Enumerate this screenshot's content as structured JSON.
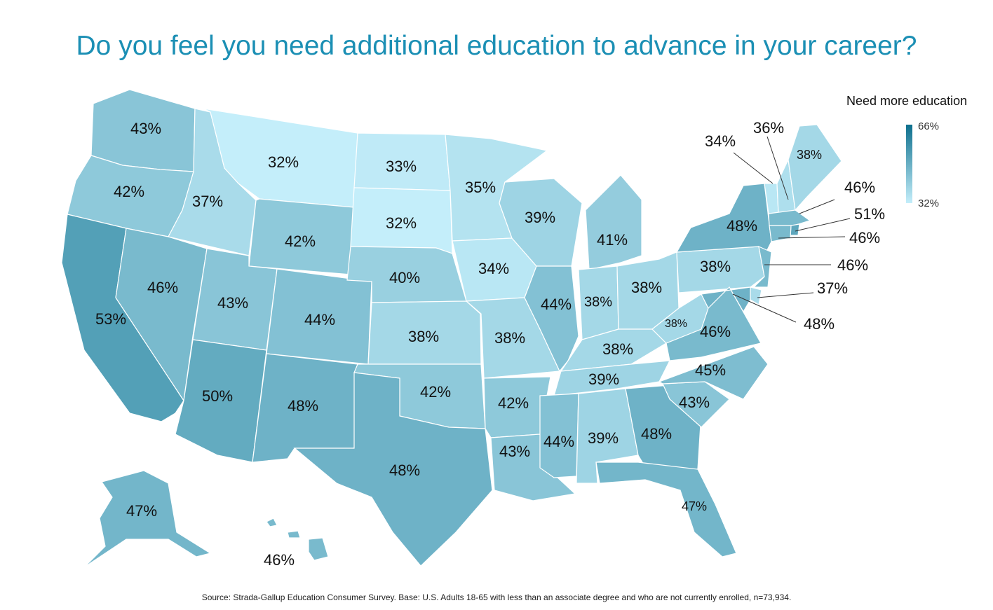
{
  "title": "Do you feel you need additional education to advance in your career?",
  "legend": {
    "title": "Need more education",
    "max": "66%",
    "min": "32%",
    "color_max": "#0d6f8d",
    "color_min": "#c4eefa"
  },
  "source": "Source: Strada-Gallup Education Consumer Survey.  Base: U.S. Adults 18-65 with less than an associate degree and who are not currently enrolled, n=73,934.",
  "states": [
    {
      "name": "Washington",
      "label": "43%"
    },
    {
      "name": "Oregon",
      "label": "42%"
    },
    {
      "name": "California",
      "label": "53%"
    },
    {
      "name": "Idaho",
      "label": "37%"
    },
    {
      "name": "Nevada",
      "label": "46%"
    },
    {
      "name": "Montana",
      "label": "32%"
    },
    {
      "name": "Wyoming",
      "label": "42%"
    },
    {
      "name": "Utah",
      "label": "43%"
    },
    {
      "name": "Arizona",
      "label": "50%"
    },
    {
      "name": "Colorado",
      "label": "44%"
    },
    {
      "name": "New Mexico",
      "label": "48%"
    },
    {
      "name": "North Dakota",
      "label": "33%"
    },
    {
      "name": "South Dakota",
      "label": "32%"
    },
    {
      "name": "Nebraska",
      "label": "40%"
    },
    {
      "name": "Kansas",
      "label": "38%"
    },
    {
      "name": "Oklahoma",
      "label": "42%"
    },
    {
      "name": "Texas",
      "label": "48%"
    },
    {
      "name": "Minnesota",
      "label": "35%"
    },
    {
      "name": "Iowa",
      "label": "34%"
    },
    {
      "name": "Missouri",
      "label": "38%"
    },
    {
      "name": "Arkansas",
      "label": "42%"
    },
    {
      "name": "Louisiana",
      "label": "43%"
    },
    {
      "name": "Wisconsin",
      "label": "39%"
    },
    {
      "name": "Illinois",
      "label": "44%"
    },
    {
      "name": "Michigan",
      "label": "41%"
    },
    {
      "name": "Indiana",
      "label": "38%"
    },
    {
      "name": "Ohio",
      "label": "38%"
    },
    {
      "name": "Kentucky",
      "label": "38%"
    },
    {
      "name": "Tennessee",
      "label": "39%"
    },
    {
      "name": "Mississippi",
      "label": "44%"
    },
    {
      "name": "Alabama",
      "label": "39%"
    },
    {
      "name": "Georgia",
      "label": "48%"
    },
    {
      "name": "Florida",
      "label": "47%"
    },
    {
      "name": "South Carolina",
      "label": "43%"
    },
    {
      "name": "North Carolina",
      "label": "45%"
    },
    {
      "name": "Virginia",
      "label": "46%"
    },
    {
      "name": "West Virginia",
      "label": "38%"
    },
    {
      "name": "Pennsylvania",
      "label": "38%"
    },
    {
      "name": "New York",
      "label": "48%"
    },
    {
      "name": "Vermont",
      "label": "34%"
    },
    {
      "name": "New Hampshire",
      "label": "36%"
    },
    {
      "name": "Maine",
      "label": "38%"
    },
    {
      "name": "Massachusetts",
      "label": "46%"
    },
    {
      "name": "Rhode Island",
      "label": "51%"
    },
    {
      "name": "Connecticut",
      "label": "46%"
    },
    {
      "name": "New Jersey",
      "label": "46%"
    },
    {
      "name": "Delaware",
      "label": "37%"
    },
    {
      "name": "Maryland",
      "label": "48%"
    },
    {
      "name": "Alaska",
      "label": "47%"
    },
    {
      "name": "Hawaii",
      "label": "46%"
    }
  ]
}
